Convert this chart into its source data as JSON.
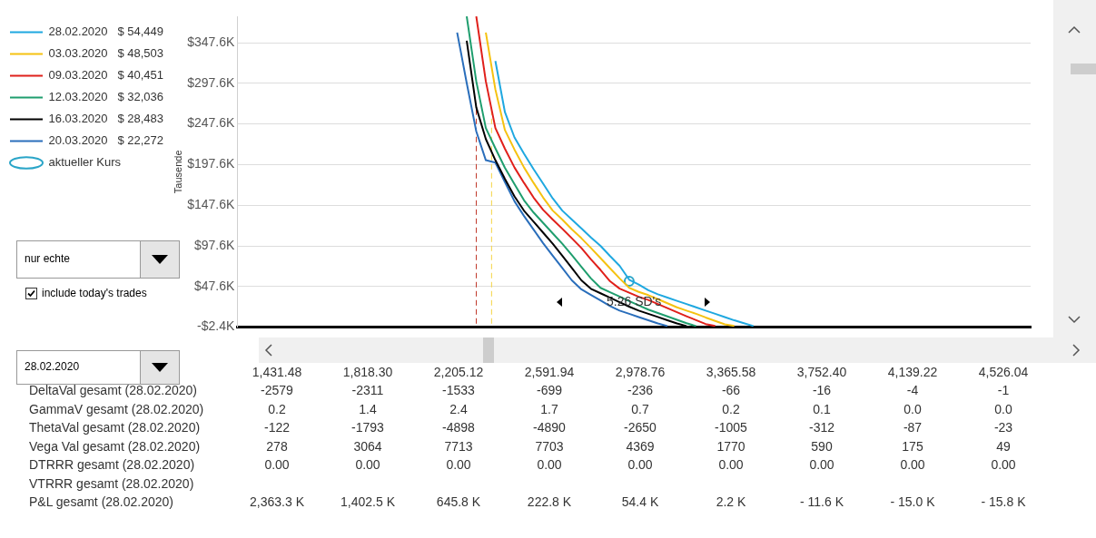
{
  "chart_data": [
    {
      "type": "line",
      "ylabel": "Tausende",
      "categories": [
        null,
        null,
        null,
        null,
        null,
        null,
        null,
        null,
        null,
        null,
        null,
        null,
        null,
        null,
        null,
        null,
        null,
        null,
        null,
        null,
        null,
        null,
        null,
        null,
        null,
        null,
        null,
        null,
        null,
        null,
        null,
        null,
        null,
        null,
        null,
        null,
        null,
        null,
        null,
        null,
        null,
        null,
        null,
        null,
        null,
        null,
        null,
        null,
        null,
        null,
        null,
        null,
        null,
        null,
        null,
        null,
        null,
        null,
        null,
        null,
        null,
        null,
        null,
        null,
        null,
        null,
        null,
        null,
        null,
        null,
        null,
        null,
        null,
        null,
        null,
        null,
        null,
        null,
        null,
        null,
        null,
        null,
        null,
        null
      ],
      "ylim": [
        -2.4,
        380
      ],
      "yticks": [
        {
          "value": -2.4,
          "label": "-$2.4K"
        },
        {
          "value": 47.6,
          "label": "$47.6K"
        },
        {
          "value": 97.6,
          "label": "$97.6K"
        },
        {
          "value": 147.6,
          "label": "$147.6K"
        },
        {
          "value": 197.6,
          "label": "$197.6K"
        },
        {
          "value": 247.6,
          "label": "$247.6K"
        },
        {
          "value": 297.6,
          "label": "$297.6K"
        },
        {
          "value": 347.6,
          "label": "$347.6K"
        }
      ],
      "tick_labels": "y",
      "grid": "y",
      "legend": "top left",
      "series": [
        {
          "name": "28.02.2020   $ 54,449",
          "color": "#1fa8e0",
          "values": [
            null,
            null,
            null,
            null,
            null,
            null,
            null,
            null,
            null,
            null,
            null,
            null,
            null,
            null,
            null,
            null,
            null,
            null,
            null,
            null,
            null,
            null,
            null,
            null,
            null,
            null,
            null,
            325,
            262,
            231,
            211,
            192,
            174,
            156,
            141,
            130,
            119,
            108,
            97.6,
            85,
            73,
            56,
            50,
            43,
            38,
            34,
            30,
            26,
            22,
            18,
            14,
            10,
            6,
            2.5,
            -1,
            null,
            null,
            null,
            null,
            null,
            null,
            null,
            null,
            null,
            null,
            null,
            null,
            null,
            null,
            null,
            null,
            null,
            null,
            null,
            null,
            null,
            null,
            null,
            null,
            null,
            null,
            null,
            null,
            null
          ]
        },
        {
          "name": "03.03.2020   $ 48,503",
          "color": "#f5c211",
          "values": [
            null,
            null,
            null,
            null,
            null,
            null,
            null,
            null,
            null,
            null,
            null,
            null,
            null,
            null,
            null,
            null,
            null,
            null,
            null,
            null,
            null,
            null,
            null,
            null,
            null,
            null,
            360,
            290,
            240,
            216,
            194,
            175,
            157,
            141,
            130,
            118,
            107,
            95,
            82.6,
            70,
            57.6,
            46,
            41,
            37,
            32,
            27,
            22,
            18,
            14,
            9.5,
            5.3,
            1,
            -1,
            null,
            null,
            null,
            null,
            null,
            null,
            null,
            null,
            null,
            null,
            null,
            null,
            null,
            null,
            null,
            null,
            null,
            null,
            null,
            null,
            null,
            null,
            null,
            null,
            null,
            null,
            null,
            null,
            null,
            null,
            null
          ]
        },
        {
          "name": "09.03.2020   $ 40,451",
          "color": "#e0201b",
          "values": [
            null,
            null,
            null,
            null,
            null,
            null,
            null,
            null,
            null,
            null,
            null,
            null,
            null,
            null,
            null,
            null,
            null,
            null,
            null,
            null,
            null,
            null,
            null,
            null,
            null,
            380,
            300,
            242.6,
            217,
            194,
            175,
            157,
            141.8,
            130,
            118.7,
            107,
            95,
            81,
            68,
            54,
            45,
            40,
            35,
            31,
            26,
            21,
            16,
            11,
            6.3,
            1.4,
            -1,
            null,
            null,
            null,
            null,
            null,
            null,
            null,
            null,
            null,
            null,
            null,
            null,
            null,
            null,
            null,
            null,
            null,
            null,
            null,
            null,
            null,
            null,
            null,
            null,
            null,
            null,
            null,
            null,
            null,
            null,
            null,
            null,
            null
          ]
        },
        {
          "name": "12.03.2020   $ 32,036",
          "color": "#1f9e6e",
          "values": [
            null,
            null,
            null,
            null,
            null,
            null,
            null,
            null,
            null,
            null,
            null,
            null,
            null,
            null,
            null,
            null,
            null,
            null,
            null,
            null,
            null,
            null,
            null,
            null,
            380,
            300,
            242.6,
            217.6,
            193.6,
            173.6,
            153.6,
            138.6,
            125.8,
            113,
            100.2,
            86.2,
            71.9,
            57.6,
            46,
            40.6,
            35.2,
            29.7,
            24.3,
            19.2,
            15,
            10.8,
            6.6,
            2.4,
            -1,
            null,
            null,
            null,
            null,
            null,
            null,
            null,
            null,
            null,
            null,
            null,
            null,
            null,
            null,
            null,
            null,
            null,
            null,
            null,
            null,
            null,
            null,
            null,
            null,
            null,
            null,
            null,
            null,
            null,
            null,
            null,
            null,
            null,
            null,
            null
          ]
        },
        {
          "name": "16.03.2020   $ 28,483",
          "color": "#000000",
          "values": [
            null,
            null,
            null,
            null,
            null,
            null,
            null,
            null,
            null,
            null,
            null,
            null,
            null,
            null,
            null,
            null,
            null,
            null,
            null,
            null,
            null,
            null,
            null,
            null,
            350,
            268,
            229,
            203,
            180,
            158.5,
            140.8,
            127.3,
            113.8,
            100.3,
            85.5,
            70.3,
            55.2,
            44.8,
            39.3,
            33.8,
            28.3,
            22.8,
            18,
            14,
            10.1,
            6.1,
            2.2,
            -1,
            null,
            null,
            null,
            null,
            null,
            null,
            null,
            null,
            null,
            null,
            null,
            null,
            null,
            null,
            null,
            null,
            null,
            null,
            null,
            null,
            null,
            null,
            null,
            null,
            null,
            null,
            null,
            null,
            null,
            null,
            null,
            null,
            null,
            null,
            null,
            null
          ]
        },
        {
          "name": "20.03.2020   $ 22,272",
          "color": "#2a6ebb",
          "values": [
            null,
            null,
            null,
            null,
            null,
            null,
            null,
            null,
            null,
            null,
            null,
            null,
            null,
            null,
            null,
            null,
            null,
            null,
            null,
            null,
            null,
            null,
            null,
            360,
            298,
            238.5,
            203,
            200,
            176,
            152.4,
            134.3,
            117.6,
            100.9,
            85.5,
            70.3,
            55.2,
            44.1,
            37.2,
            30.4,
            23.5,
            18,
            14,
            10,
            6.1,
            2.2,
            -1,
            null,
            null,
            null,
            null,
            null,
            null,
            null,
            null,
            null,
            null,
            null,
            null,
            null,
            null,
            null,
            null,
            null,
            null,
            null,
            null,
            null,
            null,
            null,
            null,
            null,
            null,
            null,
            null,
            null,
            null,
            null,
            null,
            null,
            null,
            null,
            null,
            null,
            null
          ]
        },
        {
          "name": "aktueller Kurs",
          "type": "scatter",
          "marker": "circle",
          "color": "#2aa5c8",
          "values": [
            null,
            null,
            null,
            null,
            null,
            null,
            null,
            null,
            null,
            null,
            null,
            null,
            null,
            null,
            null,
            null,
            null,
            null,
            null,
            null,
            null,
            null,
            null,
            null,
            null,
            null,
            null,
            null,
            null,
            null,
            null,
            null,
            null,
            null,
            null,
            null,
            null,
            null,
            null,
            null,
            null,
            54,
            null,
            null,
            null,
            null,
            null,
            null,
            null,
            null,
            null,
            null,
            null,
            null,
            null,
            null,
            null,
            null,
            null,
            null,
            null,
            null,
            null,
            null,
            null,
            null,
            null,
            null,
            null,
            null,
            null,
            null,
            null,
            null,
            null,
            null,
            null,
            null,
            null,
            null,
            null,
            null,
            null,
            null
          ]
        }
      ],
      "annotations": [
        "5.26 SD's",
        "nur echte",
        "include today's trades",
        "28.02.2020"
      ]
    },
    {
      "type": "heatmap",
      "categories": [
        "1,431.48",
        "1,818.30",
        "2,205.12",
        "2,591.94",
        "2,978.76",
        "3,365.58",
        "3,752.40",
        "4,139.22",
        "4,526.04"
      ],
      "y_categories": [
        "DeltaVal gesamt (28.02.2020)",
        "GammaV gesamt (28.02.2020)",
        "ThetaVal gesamt (28.02.2020)",
        "Vega Val gesamt (28.02.2020)",
        "DTRRR gesamt (28.02.2020)",
        "VTRRR gesamt (28.02.2020)",
        "P&L gesamt (28.02.2020)"
      ],
      "cells": [
        [
          -2579,
          -2311,
          -1533,
          -699,
          -236,
          -66,
          -16,
          -4,
          -1
        ],
        [
          0.2,
          1.4,
          2.4,
          1.7,
          0.7,
          0.2,
          0.1,
          0.0,
          0.0
        ],
        [
          -122,
          -1793,
          -4898,
          -4890,
          -2650,
          -1005,
          -312,
          -87,
          -23
        ],
        [
          278,
          3064,
          7713,
          7703,
          4369,
          1770,
          590,
          175,
          49
        ],
        [
          0,
          0,
          0,
          0,
          0,
          0,
          0,
          0,
          0
        ],
        [
          null,
          null,
          null,
          null,
          null,
          null,
          null,
          null,
          null
        ],
        [
          2363.3,
          1402.5,
          645.8,
          222.8,
          54.4,
          2.2,
          -11.6,
          -15.0,
          -15.8
        ]
      ],
      "cell_labels": [
        [
          "-2579",
          "-2311",
          "-1533",
          "-699",
          "-236",
          "-66",
          "-16",
          "-4",
          "-1"
        ],
        [
          "0.2",
          "1.4",
          "2.4",
          "1.7",
          "0.7",
          "0.2",
          "0.1",
          "0.0",
          "0.0"
        ],
        [
          "-122",
          "-1793",
          "-4898",
          "-4890",
          "-2650",
          "-1005",
          "-312",
          "-87",
          "-23"
        ],
        [
          "278",
          "3064",
          "7713",
          "7703",
          "4369",
          "1770",
          "590",
          "175",
          "49"
        ],
        [
          "0.00",
          "0.00",
          "0.00",
          "0.00",
          "0.00",
          "0.00",
          "0.00",
          "0.00",
          "0.00"
        ],
        [
          null,
          null,
          null,
          null,
          null,
          null,
          null,
          null,
          null
        ],
        [
          "2,363.3 K",
          "1,402.5 K",
          "645.8 K",
          "222.8 K",
          "54.4 K",
          "2.2 K",
          "- 11.6 K",
          "- 15.0 K",
          "- 15.8 K"
        ]
      ]
    }
  ]
}
